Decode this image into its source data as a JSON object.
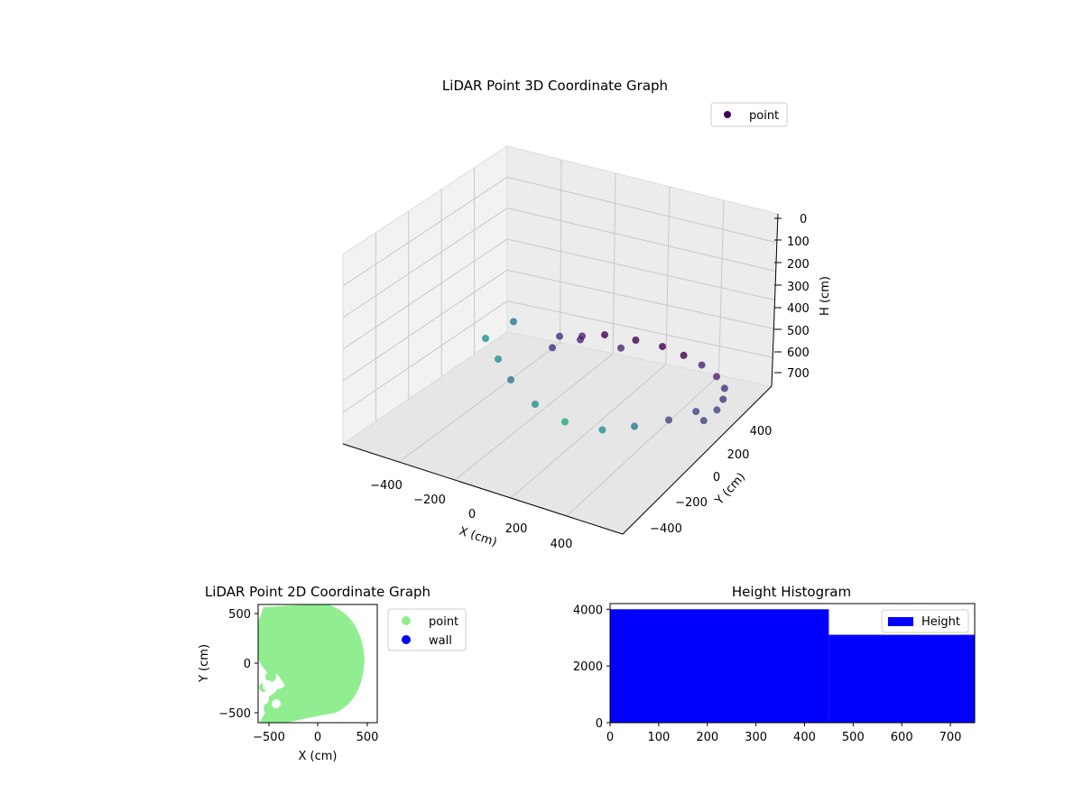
{
  "chart_data": [
    {
      "type": "scatter",
      "projection": "3d",
      "title": "LiDAR Point 3D Coordinate Graph",
      "xlabel": "X (cm)",
      "ylabel": "Y (cm)",
      "zlabel": "H (cm)",
      "x_ticks": [
        "−400",
        "−200",
        "0",
        "200",
        "400"
      ],
      "y_ticks": [
        "−400",
        "−200",
        "0",
        "200",
        "400"
      ],
      "z_ticks": [
        "0",
        "100",
        "200",
        "300",
        "400",
        "500",
        "600",
        "700"
      ],
      "xlim": [
        -600,
        600
      ],
      "ylim": [
        -600,
        600
      ],
      "zlim": [
        750,
        0
      ],
      "grid": true,
      "legend": {
        "position": "top-right",
        "entries": [
          {
            "label": "point",
            "color": "#440154"
          }
        ]
      },
      "colormap": "viridis",
      "series": [
        {
          "name": "point",
          "points": [
            {
              "x": -300,
              "y": 150,
              "z": 160,
              "color": "#46327e"
            },
            {
              "x": -250,
              "y": 250,
              "z": 250,
              "color": "#482878"
            },
            {
              "x": -200,
              "y": 350,
              "z": 330,
              "color": "#440154"
            },
            {
              "x": -100,
              "y": 420,
              "z": 400,
              "color": "#440154"
            },
            {
              "x": 0,
              "y": 450,
              "z": 430,
              "color": "#440154"
            },
            {
              "x": 100,
              "y": 430,
              "z": 420,
              "color": "#440154"
            },
            {
              "x": 200,
              "y": 380,
              "z": 380,
              "color": "#482878"
            },
            {
              "x": 300,
              "y": 300,
              "z": 320,
              "color": "#482878"
            },
            {
              "x": 380,
              "y": 200,
              "z": 250,
              "color": "#46327e"
            },
            {
              "x": 420,
              "y": 100,
              "z": 200,
              "color": "#46327e"
            },
            {
              "x": 440,
              "y": 0,
              "z": 160,
              "color": "#414487"
            },
            {
              "x": 430,
              "y": -100,
              "z": 140,
              "color": "#414487"
            },
            {
              "x": -400,
              "y": 300,
              "z": 520,
              "color": "#46327e"
            },
            {
              "x": -350,
              "y": 450,
              "z": 600,
              "color": "#482878"
            },
            {
              "x": -200,
              "y": 500,
              "z": 640,
              "color": "#482878"
            },
            {
              "x": -500,
              "y": -100,
              "z": 0,
              "color": "#21918c"
            },
            {
              "x": -450,
              "y": 50,
              "z": 0,
              "color": "#2a788e"
            },
            {
              "x": -400,
              "y": -200,
              "z": 0,
              "color": "#21918c"
            },
            {
              "x": -300,
              "y": -300,
              "z": 0,
              "color": "#2a788e"
            },
            {
              "x": -150,
              "y": -400,
              "z": 0,
              "color": "#21918c"
            },
            {
              "x": 0,
              "y": -450,
              "z": 0,
              "color": "#22a884"
            },
            {
              "x": 150,
              "y": -430,
              "z": 0,
              "color": "#21918c"
            },
            {
              "x": 250,
              "y": -350,
              "z": 0,
              "color": "#2a788e"
            },
            {
              "x": 350,
              "y": -250,
              "z": 0,
              "color": "#414487"
            },
            {
              "x": 420,
              "y": -150,
              "z": 0,
              "color": "#414487"
            }
          ]
        }
      ]
    },
    {
      "type": "scatter",
      "title": "LiDAR Point 2D Coordinate Graph",
      "xlabel": "X (cm)",
      "ylabel": "Y (cm)",
      "x_ticks": [
        "−500",
        "0",
        "500"
      ],
      "y_ticks": [
        "500",
        "0",
        "−500"
      ],
      "xlim": [
        -600,
        600
      ],
      "ylim": [
        -600,
        600
      ],
      "legend": {
        "position": "outside-right",
        "entries": [
          {
            "label": "point",
            "color": "#90ee90"
          },
          {
            "label": "wall",
            "color": "#0000ff"
          }
        ]
      },
      "series": [
        {
          "name": "point",
          "color": "#90ee90"
        },
        {
          "name": "wall",
          "color": "#0000ff"
        }
      ]
    },
    {
      "type": "bar",
      "title": "Height Histogram",
      "x_ticks": [
        "0",
        "100",
        "200",
        "300",
        "400",
        "500",
        "600",
        "700"
      ],
      "y_ticks": [
        "0",
        "2000",
        "4000"
      ],
      "xlim": [
        0,
        750
      ],
      "ylim": [
        0,
        4200
      ],
      "legend": {
        "position": "top-right",
        "entries": [
          {
            "label": "Height",
            "color": "#0000ff"
          }
        ]
      },
      "series": [
        {
          "name": "Height",
          "color": "#0000ff",
          "bins": [
            {
              "x0": 0,
              "x1": 450,
              "value": 4000
            },
            {
              "x0": 450,
              "x1": 750,
              "value": 3100
            }
          ]
        }
      ]
    }
  ]
}
